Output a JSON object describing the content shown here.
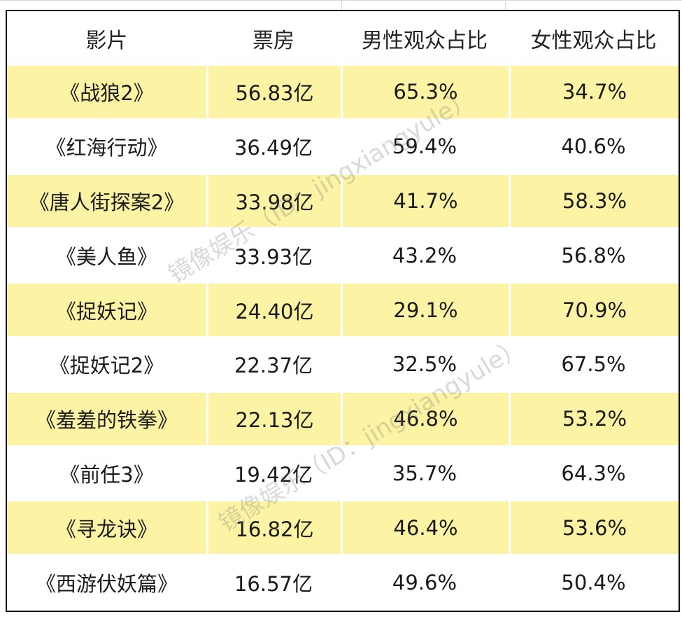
{
  "chart_data": {
    "type": "table",
    "columns": [
      "影片",
      "票房",
      "男性观众占比",
      "女性观众占比"
    ],
    "rows": [
      [
        "《战狼2》",
        "56.83亿",
        "65.3%",
        "34.7%"
      ],
      [
        "《红海行动》",
        "36.49亿",
        "59.4%",
        "40.6%"
      ],
      [
        "《唐人街探案2》",
        "33.98亿",
        "41.7%",
        "58.3%"
      ],
      [
        "《美人鱼》",
        "33.93亿",
        "43.2%",
        "56.8%"
      ],
      [
        "《捉妖记》",
        "24.40亿",
        "29.1%",
        "70.9%"
      ],
      [
        "《捉妖记2》",
        "22.37亿",
        "32.5%",
        "67.5%"
      ],
      [
        "《羞羞的铁拳》",
        "22.13亿",
        "46.8%",
        "53.2%"
      ],
      [
        "《前任3》",
        "19.42亿",
        "35.7%",
        "64.3%"
      ],
      [
        "《寻龙诀》",
        "16.82亿",
        "46.4%",
        "53.6%"
      ],
      [
        "《西游伏妖篇》",
        "16.57亿",
        "49.6%",
        "50.4%"
      ]
    ],
    "title": "",
    "xlabel": "",
    "ylabel": ""
  },
  "watermark": {
    "line1": "镜像娱乐（ID：jingxiangyule）",
    "line2": "镜像娱乐（ID：jingxiangyule）"
  },
  "colors": {
    "highlight_row": "#fcf4a4",
    "border": "#111111"
  }
}
